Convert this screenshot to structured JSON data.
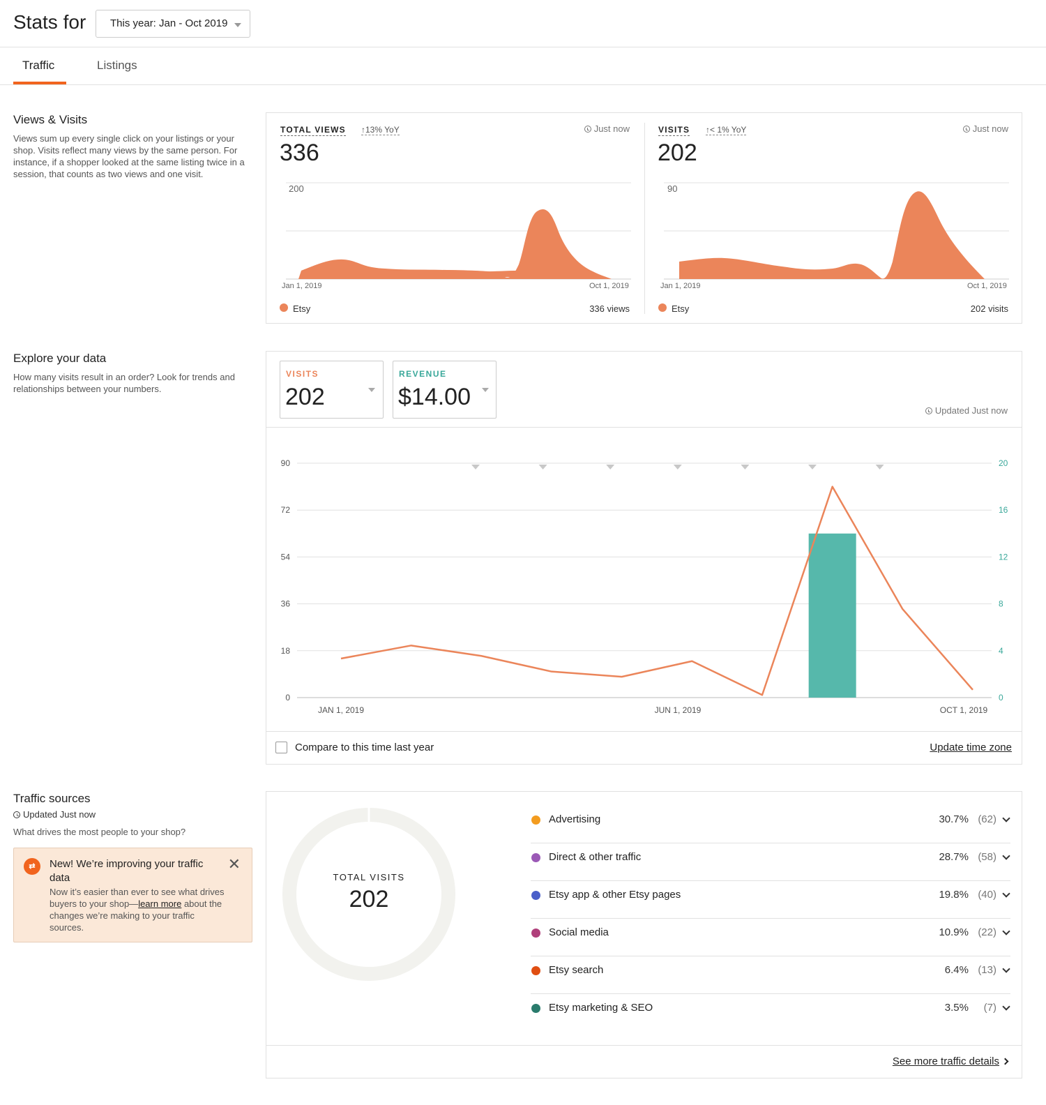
{
  "header": {
    "title": "Stats for",
    "range_value": "This year: Jan - Oct 2019"
  },
  "tabs": [
    "Traffic",
    "Listings"
  ],
  "views_visits": {
    "title": "Views & Visits",
    "description": "Views sum up every single click on your listings or your shop. Visits reflect many views by the same person. For instance, if a shopper looked at the same listing twice in a session, that counts as two views and one visit.",
    "total_views": {
      "label": "TOTAL VIEWS",
      "yoy": "13% YoY",
      "updated": "Just now",
      "value": "336",
      "axis_max": "200",
      "x_start": "Jan 1, 2019",
      "x_end": "Oct 1, 2019",
      "legend": "Etsy",
      "summary": "336 views"
    },
    "visits": {
      "label": "VISITS",
      "yoy": "< 1% YoY",
      "updated": "Just now",
      "value": "202",
      "axis_max": "90",
      "x_start": "Jan 1, 2019",
      "x_end": "Oct 1, 2019",
      "legend": "Etsy",
      "summary": "202 visits"
    },
    "colors": {
      "series": "#eb855a"
    }
  },
  "explore": {
    "title": "Explore your data",
    "description": "How many visits result in an order? Look for trends and relationships between your numbers.",
    "visits_label": "VISITS",
    "visits_value": "202",
    "revenue_label": "REVENUE",
    "revenue_value": "$14.00",
    "updated": "Updated Just now",
    "compare_label": "Compare to this time last year",
    "timezone_link": "Update time zone",
    "colors": {
      "visits": "#eb855a",
      "revenue": "#56b8ab"
    }
  },
  "chart_data": {
    "type": "line",
    "x": [
      "Jan 2019",
      "Feb 2019",
      "Mar 2019",
      "Apr 2019",
      "May 2019",
      "Jun 2019",
      "Jul 2019",
      "Aug 2019",
      "Sep 2019",
      "Oct 2019"
    ],
    "x_tick_labels": [
      "JAN 1, 2019",
      "JUN 1, 2019",
      "OCT 1, 2019"
    ],
    "series": [
      {
        "name": "VISITS",
        "type": "line",
        "axis": "left",
        "color": "#eb855a",
        "values": [
          15,
          20,
          16,
          10,
          8,
          14,
          1,
          81,
          34,
          3
        ]
      },
      {
        "name": "REVENUE",
        "type": "bar",
        "axis": "right",
        "color": "#56b8ab",
        "values": [
          0,
          0,
          0,
          0,
          0,
          0,
          0,
          14,
          0,
          0
        ]
      }
    ],
    "y_left_ticks": [
      "0",
      "18",
      "36",
      "54",
      "72",
      "90"
    ],
    "y_right_ticks": [
      "0",
      "4",
      "8",
      "12",
      "16",
      "20"
    ],
    "ylim_left": [
      0,
      90
    ],
    "ylim_right": [
      0,
      20
    ],
    "grid": true
  },
  "traffic_sources": {
    "title": "Traffic sources",
    "updated": "Updated Just now",
    "question": "What drives the most people to your shop?",
    "notice": {
      "title": "New! We’re improving your traffic data",
      "body_pre": "Now it’s easier than ever to see what drives buyers to your shop—",
      "link": "learn more",
      "body_post": " about the changes we’re making to your traffic sources."
    },
    "donut_label": "TOTAL VISITS",
    "donut_value": "202",
    "sources": [
      {
        "name": "Advertising",
        "pct": "30.7%",
        "count": "(62)",
        "color": "#f39c1f"
      },
      {
        "name": "Direct & other traffic",
        "pct": "28.7%",
        "count": "(58)",
        "color": "#9b59b6"
      },
      {
        "name": "Etsy app & other Etsy pages",
        "pct": "19.8%",
        "count": "(40)",
        "color": "#4a5fc9"
      },
      {
        "name": "Social media",
        "pct": "10.9%",
        "count": "(22)",
        "color": "#b0407b"
      },
      {
        "name": "Etsy search",
        "pct": "6.4%",
        "count": "(13)",
        "color": "#e04e12"
      },
      {
        "name": "Etsy marketing & SEO",
        "pct": "3.5%",
        "count": "(7)",
        "color": "#2a7b6c"
      }
    ],
    "more_link": "See more traffic details"
  }
}
